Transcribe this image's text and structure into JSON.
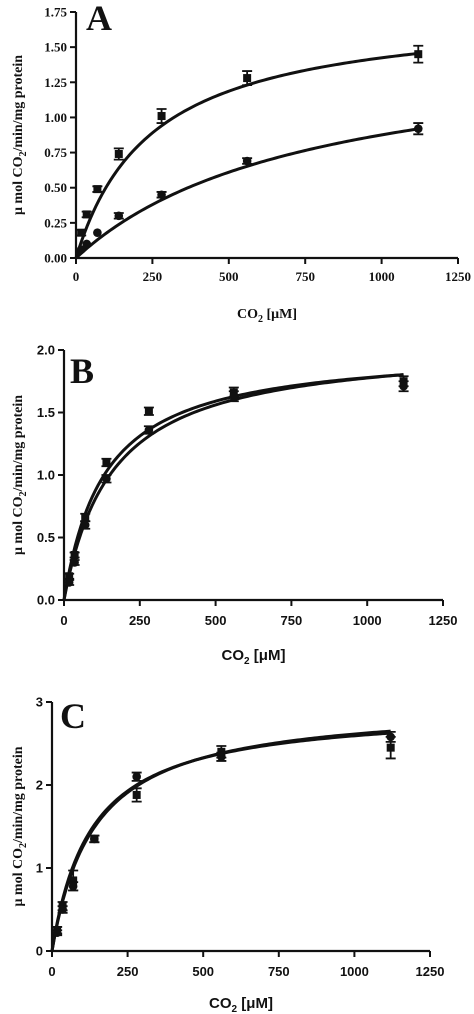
{
  "colors": {
    "ink": "#111111",
    "background": "#ffffff"
  },
  "chart_data": [
    {
      "type": "scatter",
      "panel": "A",
      "xlabel_main": "CO",
      "xlabel_sub": "2",
      "xlabel_unit": " [μM]",
      "ylabel_pre": "μ mol CO",
      "ylabel_sub": "2",
      "ylabel_post": "/min/mg protein",
      "xlim": [
        0,
        1250
      ],
      "ylim": [
        0,
        1.75
      ],
      "xticks": [
        0,
        250,
        500,
        750,
        1000,
        1250
      ],
      "yticks": [
        0,
        0.25,
        0.5,
        0.75,
        1.0,
        1.25,
        1.5,
        1.75
      ],
      "xtick_labels": [
        "0",
        "250",
        "500",
        "750",
        "1000",
        "1250"
      ],
      "ytick_labels": [
        "0.00",
        "0.25",
        "0.50",
        "0.75",
        "1.00",
        "1.25",
        "1.50",
        "1.75"
      ],
      "series": [
        {
          "marker": "square",
          "x": [
            17,
            35,
            70,
            140,
            280,
            560,
            1120
          ],
          "y": [
            0.18,
            0.31,
            0.49,
            0.74,
            1.01,
            1.28,
            1.45
          ],
          "err": [
            0.02,
            0.02,
            0.02,
            0.04,
            0.05,
            0.05,
            0.06
          ],
          "fit": {
            "vmax": 1.78,
            "km": 250
          }
        },
        {
          "marker": "circle",
          "x": [
            17,
            35,
            70,
            140,
            280,
            560,
            1120
          ],
          "y": [
            0.06,
            0.1,
            0.18,
            0.3,
            0.45,
            0.69,
            0.92
          ],
          "err": [
            0.01,
            0.01,
            0.01,
            0.02,
            0.02,
            0.02,
            0.04
          ],
          "fit": {
            "vmax": 1.55,
            "km": 770
          }
        }
      ]
    },
    {
      "type": "scatter",
      "panel": "B",
      "xlabel_main": "CO",
      "xlabel_sub": "2",
      "xlabel_unit": " [μM]",
      "ylabel_pre": "μ mol CO",
      "ylabel_sub": "2",
      "ylabel_post": "/min/mg protein",
      "xlim": [
        0,
        1250
      ],
      "ylim": [
        0,
        2.0
      ],
      "xticks": [
        0,
        250,
        500,
        750,
        1000,
        1250
      ],
      "yticks": [
        0,
        0.5,
        1.0,
        1.5,
        2.0
      ],
      "xtick_labels": [
        "0",
        "250",
        "500",
        "750",
        "1000",
        "1250"
      ],
      "ytick_labels": [
        "0.0",
        "0.5",
        "1.0",
        "1.5",
        "2.0"
      ],
      "series": [
        {
          "marker": "square",
          "x": [
            17,
            35,
            70,
            140,
            280,
            560,
            1120
          ],
          "y": [
            0.19,
            0.36,
            0.66,
            1.1,
            1.51,
            1.66,
            1.75
          ],
          "err": [
            0.02,
            0.02,
            0.03,
            0.03,
            0.03,
            0.04,
            0.04
          ],
          "fit": {
            "vmax": 2.02,
            "km": 135
          }
        },
        {
          "marker": "circle",
          "x": [
            17,
            35,
            70,
            140,
            280,
            560,
            1120
          ],
          "y": [
            0.14,
            0.3,
            0.6,
            0.97,
            1.36,
            1.63,
            1.71
          ],
          "err": [
            0.02,
            0.02,
            0.03,
            0.03,
            0.03,
            0.04,
            0.04
          ],
          "fit": {
            "vmax": 2.06,
            "km": 160
          }
        }
      ]
    },
    {
      "type": "scatter",
      "panel": "C",
      "xlabel_main": "CO",
      "xlabel_sub": "2",
      "xlabel_unit": " [μM]",
      "ylabel_pre": "μ mol CO",
      "ylabel_sub": "2",
      "ylabel_post": "/min/mg protein",
      "xlim": [
        0,
        1250
      ],
      "ylim": [
        0,
        3
      ],
      "xticks": [
        0,
        250,
        500,
        750,
        1000,
        1250
      ],
      "yticks": [
        0,
        1,
        2,
        3
      ],
      "xtick_labels": [
        "0",
        "250",
        "500",
        "750",
        "1000",
        "1250"
      ],
      "ytick_labels": [
        "0",
        "1",
        "2",
        "3"
      ],
      "series": [
        {
          "marker": "square",
          "x": [
            17,
            35,
            70,
            140,
            280,
            560,
            1120
          ],
          "y": [
            0.25,
            0.54,
            0.85,
            1.35,
            1.88,
            2.4,
            2.45
          ],
          "err": [
            0.04,
            0.05,
            0.12,
            0.04,
            0.08,
            0.07,
            0.13
          ],
          "fit": {
            "vmax": 2.93,
            "km": 130
          }
        },
        {
          "marker": "circle",
          "x": [
            17,
            35,
            70,
            140,
            280,
            560,
            1120
          ],
          "y": [
            0.22,
            0.5,
            0.78,
            1.35,
            2.1,
            2.34,
            2.58
          ],
          "err": [
            0.03,
            0.04,
            0.05,
            0.04,
            0.05,
            0.05,
            0.06
          ],
          "fit": {
            "vmax": 2.98,
            "km": 140
          }
        }
      ]
    }
  ]
}
